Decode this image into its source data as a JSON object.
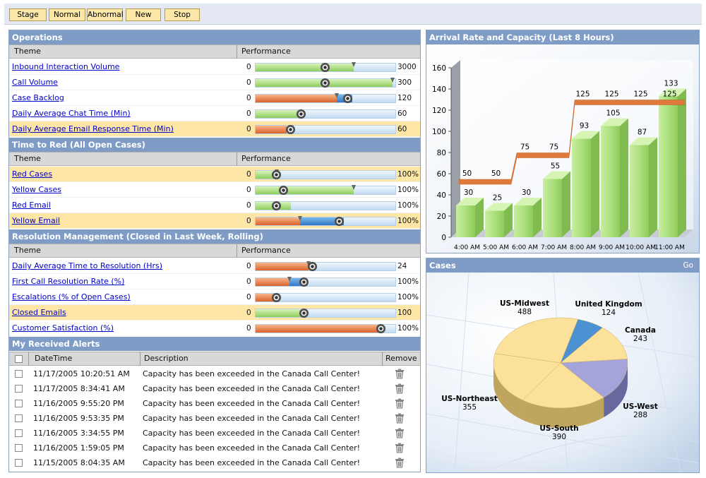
{
  "toolbar": {
    "buttons": [
      {
        "label": "Stage"
      },
      {
        "label": "Normal"
      },
      {
        "label": "Abnormal"
      },
      {
        "label": "New"
      },
      {
        "label": "Stop"
      }
    ]
  },
  "headers": {
    "theme": "Theme",
    "performance": "Performance"
  },
  "operations": {
    "title": "Operations",
    "rows": [
      {
        "theme": "Inbound Interaction Volume",
        "min": "0",
        "max": "3000",
        "fill": 0.7,
        "color": "green",
        "marker": 0.5,
        "threshold": 0.7,
        "highlight": false
      },
      {
        "theme": "Call Volume",
        "min": "0",
        "max": "300",
        "fill": 0.98,
        "color": "green",
        "marker": 0.5,
        "threshold": 0.98,
        "highlight": false
      },
      {
        "theme": "Case Backlog",
        "min": "0",
        "max": "120",
        "fill": 0.58,
        "color": "orange",
        "blue_end": 0.69,
        "marker": 0.66,
        "threshold": 0.58,
        "highlight": false
      },
      {
        "theme": "Daily Average Chat Time (Min)",
        "min": "0",
        "max": "60",
        "fill": 0.33,
        "color": "green",
        "marker": 0.33,
        "highlight": false
      },
      {
        "theme": "Daily Average Email Response Time (Min)",
        "min": "0",
        "max": "60",
        "fill": 0.22,
        "color": "orange",
        "marker": 0.25,
        "highlight": true
      }
    ]
  },
  "time_to_red": {
    "title": "Time to Red (All Open Cases)",
    "rows": [
      {
        "theme": "Red Cases",
        "min": "0",
        "max": "100%",
        "fill": 0.15,
        "color": "green",
        "marker": 0.15,
        "threshold": 0.15,
        "highlight": true
      },
      {
        "theme": "Yellow Cases",
        "min": "0",
        "max": "100%",
        "fill": 0.7,
        "color": "green",
        "marker": 0.2,
        "threshold": 0.7,
        "highlight": false
      },
      {
        "theme": "Red Email",
        "min": "0",
        "max": "100%",
        "fill": 0.25,
        "color": "green",
        "marker": 0.15,
        "highlight": false
      },
      {
        "theme": "Yellow Email",
        "min": "0",
        "max": "100%",
        "fill": 0.32,
        "color": "orange",
        "blue_end": 0.63,
        "marker": 0.6,
        "threshold": 0.32,
        "highlight": true
      }
    ]
  },
  "resolution": {
    "title": "Resolution Management (Closed in Last Week, Rolling)",
    "rows": [
      {
        "theme": "Daily Average Time to Resolution (Hrs)",
        "min": "0",
        "max": "24",
        "fill": 0.38,
        "color": "orange",
        "marker": 0.41,
        "threshold": 0.38,
        "highlight": false
      },
      {
        "theme": "First Call Resolution Rate (%)",
        "min": "0",
        "max": "100%",
        "fill": 0.24,
        "color": "orange",
        "blue_end": 0.37,
        "marker": 0.35,
        "threshold": 0.24,
        "highlight": false
      },
      {
        "theme": "Escalations (% of Open Cases)",
        "min": "0",
        "max": "100%",
        "fill": 0.15,
        "color": "orange",
        "marker": 0.15,
        "highlight": false
      },
      {
        "theme": "Closed Emails",
        "min": "0",
        "max": "100",
        "fill": 0.35,
        "color": "green",
        "marker": 0.35,
        "highlight": true
      },
      {
        "theme": "Customer Satisfaction (%)",
        "min": "0",
        "max": "100%",
        "fill": 0.9,
        "color": "orange",
        "marker": 0.9,
        "highlight": false
      }
    ]
  },
  "alerts": {
    "title": "My Received Alerts",
    "columns": {
      "datetime": "DateTime",
      "description": "Description",
      "remove": "Remove"
    },
    "rows": [
      {
        "datetime": "11/17/2005 10:20:51 AM",
        "description": "Capacity has been exceeded in the Canada Call Center!"
      },
      {
        "datetime": "11/17/2005 8:34:41 AM",
        "description": "Capacity has been exceeded in the Canada Call Center!"
      },
      {
        "datetime": "11/16/2005 9:55:20 PM",
        "description": "Capacity has been exceeded in the Canada Call Center!"
      },
      {
        "datetime": "11/16/2005 9:53:35 PM",
        "description": "Capacity has been exceeded in the Canada Call Center!"
      },
      {
        "datetime": "11/16/2005 3:34:55 PM",
        "description": "Capacity has been exceeded in the Canada Call Center!"
      },
      {
        "datetime": "11/16/2005 1:59:05 PM",
        "description": "Capacity has been exceeded in the Canada Call Center!"
      },
      {
        "datetime": "11/15/2005 8:04:35 AM",
        "description": "Capacity has been exceeded in the Canada Call Center!"
      }
    ]
  },
  "arrival_panel": {
    "title": "Arrival Rate and Capacity (Last 8 Hours)"
  },
  "cases_panel": {
    "title": "Cases",
    "go": "Go"
  },
  "chart_data": [
    {
      "type": "bar",
      "title": "Arrival Rate and Capacity (Last 8 Hours)",
      "categories": [
        "4:00 AM",
        "5:00 AM",
        "6:00 AM",
        "7:00 AM",
        "8:00 AM",
        "9:00 AM",
        "10:00 AM",
        "11:00 AM"
      ],
      "series": [
        {
          "type": "bar",
          "values": [
            30,
            25,
            30,
            55,
            93,
            105,
            87,
            133
          ]
        },
        {
          "type": "step-line",
          "values": [
            50,
            50,
            75,
            75,
            125,
            125,
            125,
            125
          ]
        }
      ],
      "yticks": [
        "0",
        "20",
        "40",
        "60",
        "80",
        "100",
        "120",
        "140",
        "160"
      ],
      "ylim": [
        0,
        160
      ],
      "grid": false,
      "colors": {
        "bar": "#a8dc78",
        "line": "#e0783c"
      }
    },
    {
      "type": "pie",
      "title": "Cases",
      "slices": [
        {
          "label": "US-Midwest",
          "value": 488,
          "color": "#fbe19a"
        },
        {
          "label": "United Kingdom",
          "value": 124,
          "color": "#4c92d2"
        },
        {
          "label": "Canada",
          "value": 243,
          "color": "#fbe19a"
        },
        {
          "label": "US-West",
          "value": 288,
          "color": "#a4a4da"
        },
        {
          "label": "US-South",
          "value": 390,
          "color": "#fbe19a"
        },
        {
          "label": "US-Northeast",
          "value": 355,
          "color": "#fbe19a"
        }
      ]
    }
  ]
}
